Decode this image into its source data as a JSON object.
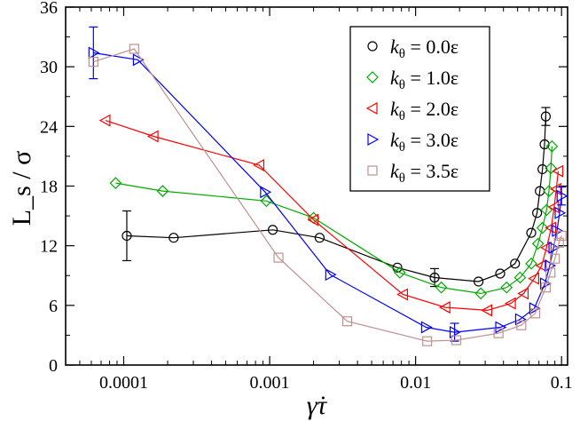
{
  "chart_data": {
    "type": "line",
    "xscale": "log",
    "xlim": [
      4e-05,
      0.11
    ],
    "ylim": [
      0,
      36
    ],
    "xlabel": "γ̇τ",
    "ylabel": "L_s / σ",
    "xticks": [
      {
        "value": 0.0001,
        "label": "0.0001"
      },
      {
        "value": 0.001,
        "label": "0.001"
      },
      {
        "value": 0.01,
        "label": "0.01"
      },
      {
        "value": 0.1,
        "label": "0.1"
      }
    ],
    "yticks": [
      0,
      6,
      12,
      18,
      24,
      30,
      36
    ],
    "legend_position": "top-right",
    "series": [
      {
        "name": "kθ = 0.0ε",
        "symbol": "k",
        "subscript": "θ",
        "value_text": " = 0.0ε",
        "color": "#000000",
        "marker": "circle",
        "points": [
          [
            0.000105,
            13.0
          ],
          [
            0.00022,
            12.8
          ],
          [
            0.00105,
            13.6
          ],
          [
            0.0022,
            12.8
          ],
          [
            0.0075,
            9.8
          ],
          [
            0.0135,
            8.8
          ],
          [
            0.027,
            8.4
          ],
          [
            0.038,
            9.2
          ],
          [
            0.048,
            10.2
          ],
          [
            0.062,
            13.3
          ],
          [
            0.068,
            15.3
          ],
          [
            0.071,
            17.5
          ],
          [
            0.074,
            19.7
          ],
          [
            0.0765,
            22.2
          ],
          [
            0.078,
            25.0
          ]
        ],
        "errorbars": [
          {
            "x": 0.000105,
            "y": 13.0,
            "err": 2.5
          },
          {
            "x": 0.0135,
            "y": 8.8,
            "err": 0.9
          },
          {
            "x": 0.078,
            "y": 25.0,
            "err": 0.9
          }
        ]
      },
      {
        "name": "kθ = 1.0ε",
        "symbol": "k",
        "subscript": "θ",
        "value_text": " = 1.0ε",
        "color": "#00aa00",
        "marker": "diamond",
        "points": [
          [
            8.8e-05,
            18.3
          ],
          [
            0.000185,
            17.5
          ],
          [
            0.00095,
            16.5
          ],
          [
            0.002,
            14.8
          ],
          [
            0.0078,
            9.3
          ],
          [
            0.015,
            7.8
          ],
          [
            0.028,
            7.2
          ],
          [
            0.042,
            7.8
          ],
          [
            0.052,
            8.8
          ],
          [
            0.062,
            10.2
          ],
          [
            0.069,
            12.2
          ],
          [
            0.074,
            13.8
          ],
          [
            0.079,
            15.6
          ],
          [
            0.082,
            17.5
          ],
          [
            0.0845,
            19.8
          ],
          [
            0.086,
            22.0
          ]
        ],
        "errorbars": []
      },
      {
        "name": "kθ = 2.0ε",
        "symbol": "k",
        "subscript": "θ",
        "value_text": " = 2.0ε",
        "color": "#ff0000",
        "marker": "triangle-left",
        "points": [
          [
            7.5e-05,
            24.6
          ],
          [
            0.00016,
            23.0
          ],
          [
            0.00085,
            20.1
          ],
          [
            0.002,
            14.6
          ],
          [
            0.0082,
            7.1
          ],
          [
            0.016,
            5.8
          ],
          [
            0.031,
            5.5
          ],
          [
            0.045,
            6.2
          ],
          [
            0.055,
            7.2
          ],
          [
            0.065,
            8.7
          ],
          [
            0.073,
            10.0
          ],
          [
            0.079,
            11.8
          ],
          [
            0.085,
            13.8
          ],
          [
            0.089,
            15.9
          ],
          [
            0.092,
            17.7
          ],
          [
            0.095,
            19.5
          ]
        ],
        "errorbars": []
      },
      {
        "name": "kθ = 3.0ε",
        "symbol": "k",
        "subscript": "θ",
        "value_text": " = 3.0ε",
        "color": "#0000ff",
        "marker": "triangle-right",
        "points": [
          [
            6.2e-05,
            31.4
          ],
          [
            0.000125,
            30.7
          ],
          [
            0.00093,
            17.4
          ],
          [
            0.0026,
            9.1
          ],
          [
            0.0118,
            3.8
          ],
          [
            0.0185,
            3.3
          ],
          [
            0.038,
            3.8
          ],
          [
            0.052,
            4.6
          ],
          [
            0.065,
            5.7
          ],
          [
            0.077,
            8.2
          ],
          [
            0.083,
            10.0
          ],
          [
            0.088,
            11.8
          ],
          [
            0.093,
            13.5
          ],
          [
            0.097,
            15.3
          ],
          [
            0.1,
            17.0
          ]
        ],
        "errorbars": [
          {
            "x": 6.2e-05,
            "y": 31.4,
            "err": 2.6
          },
          {
            "x": 0.0185,
            "y": 3.3,
            "err": 0.9
          },
          {
            "x": 0.1,
            "y": 17.0,
            "err": 0.9
          }
        ]
      },
      {
        "name": "kθ = 3.5ε",
        "symbol": "k",
        "subscript": "θ",
        "value_text": " = 3.5ε",
        "color": "#c09090",
        "marker": "square",
        "points": [
          [
            6.2e-05,
            30.5
          ],
          [
            0.000118,
            31.8
          ],
          [
            0.00115,
            10.8
          ],
          [
            0.0034,
            4.4
          ],
          [
            0.012,
            2.4
          ],
          [
            0.019,
            2.5
          ],
          [
            0.037,
            3.2
          ],
          [
            0.053,
            4.0
          ],
          [
            0.066,
            5.2
          ],
          [
            0.078,
            7.8
          ],
          [
            0.084,
            9.3
          ],
          [
            0.09,
            10.7
          ],
          [
            0.096,
            12.3
          ],
          [
            0.1,
            13.0
          ]
        ],
        "errorbars": []
      }
    ]
  }
}
